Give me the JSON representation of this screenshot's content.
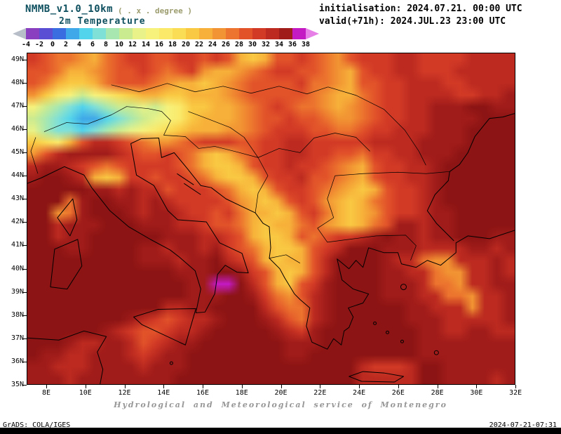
{
  "header": {
    "model": "NMMB_v1.0_10km",
    "units_note": "( . x . degree )",
    "variable": "2m Temperature",
    "initialisation": "initialisation: 2024.07.21. 00:00 UTC",
    "valid": "valid(+71h): 2024.JUL.23 23:00 UTC"
  },
  "colorbar": {
    "tick_labels": [
      "-4",
      "-2",
      "0",
      "2",
      "4",
      "6",
      "8",
      "10",
      "12",
      "14",
      "16",
      "18",
      "20",
      "22",
      "24",
      "26",
      "28",
      "30",
      "32",
      "34",
      "36",
      "38"
    ],
    "segment_colors": [
      "#8a3fc0",
      "#5a4fd4",
      "#3a6ee0",
      "#3fa8e8",
      "#52d4ec",
      "#7fe0d8",
      "#a8e8b0",
      "#cbeb90",
      "#e8f288",
      "#f6f27c",
      "#fbe96a",
      "#fbdc55",
      "#fac943",
      "#f7b13a",
      "#f29433",
      "#ec742e",
      "#e2532a",
      "#d23a26",
      "#bc2a20",
      "#a01c1a",
      "#c41ac4"
    ],
    "arrow_left_color": "#b8bec8",
    "arrow_right_color": "#e67fe6"
  },
  "map": {
    "lat_labels": [
      "49N",
      "48N",
      "47N",
      "46N",
      "45N",
      "44N",
      "43N",
      "42N",
      "41N",
      "40N",
      "39N",
      "38N",
      "37N",
      "36N",
      "35N"
    ],
    "lon_labels": [
      "8E",
      "10E",
      "12E",
      "14E",
      "16E",
      "18E",
      "20E",
      "22E",
      "24E",
      "26E",
      "28E",
      "30E",
      "32E"
    ],
    "grid": {
      "cols": 40,
      "rows": 28,
      "palette": {
        "d": "#3fa8e8",
        "e": "#52d4ec",
        "f": "#7fe0d8",
        "g": "#a8e8b0",
        "h": "#cbeb90",
        "i": "#e8f288",
        "j": "#f6f27c",
        "k": "#fbe96a",
        "l": "#fbdc55",
        "m": "#fac943",
        "n": "#f7b13a",
        "o": "#f29433",
        "p": "#ec742e",
        "q": "#e2532a",
        "r": "#d23a26",
        "s": "#bc2a20",
        "t": "#a01c1a",
        "u": "#8c1414",
        "v": "#c41ac4"
      },
      "rows_data": [
        "rqpponpqrrqqrrqrqnmnqqrqpoqrrrssrrrrssss",
        "qqpnnopqqrqpqronnopqrrqqponqrrssrrrsssss",
        "qpnmmnpqqqponnmnopqqqqrpponqqrrsssrrssss",
        "omkjhjklmnnmmnnnopqqqqqponnpqrrssssrrsst",
        "jhgfefghhihjkmmnnopqrqpponopqrrsstttuutt",
        "hgfeddefghijkmnnnopqqrqqpoopqrrssttttuuu",
        "igffefghijklmnnnoopqrrrqqppqrrssstttuuuu",
        "mlknqssrqpoopqrrrqqrrssrrrrrssssttttuuuu",
        "oqsttttsrqqrqpnmnpqrrssrrqqprrsstttuuuuu",
        "sttsrqpqrrrrqpnmmnqrrsrrqponqrrsstuuuuuu",
        "tuutsnmnrrqrrqpnmmnqrrsqqponqrrsstuuuuuu",
        "uuuuuttstssqrrrqpnmnqrrqponmnqrrstuuuuuu",
        "uuuptuuttstsrrrrqonmnqrqonmnpqrrstuuuuuu",
        "uuoptuuutsttsrrqrpnnmnqrpnmnoqrrsttuuuuu",
        "uustttuuutttssrqqpnmnnpqonmnpqttsttuuuuu",
        "uusttuuuuuutttssrqnmmnqpqrrstuttsttuuutt",
        "uuuttuuuuttsttstrqpnmmnqrsuuutttssssttst",
        "uuuuuuuuutttsttusrqnmnnqsuuuutsspoosssts",
        "uuuuuuuuuuuutttuutrqnmnqsuuuuttsspoossts",
        "uuuuuuuuuuuuuttvvusqnmqrtuuuutttspposstt",
        "uuuuuuuuuuuuutttuutrpoqstuuuutttsspposst",
        "uuuuuuuuuuussttuuuusqppstuuuuuuttsssosst",
        "uuuuuuuutsrqrsstuuutsqpstuuuuuutttssssst",
        "uuuuuutsrqqrsstuuuuutsrtuuuuuuuuttssttss",
        "uuutssttsqrsttuuuuuuutttuuuuuuuutttttttt",
        "uttsstttsrsttuuuuuuuuttuuuuuuuuutttttttt",
        "ttsssttttstttuuuuuuuuuuuuuusrrrsuutttttt",
        "tttsttttttttuuuuuuuuuuuuuuusssssuuttttst"
      ]
    }
  },
  "footer": {
    "credit": "Hydrological and Meteorological service of Montenegro",
    "grads": "GrADS: COLA/IGES",
    "timestamp": "2024-07-21-07:31"
  },
  "chart_data": {
    "type": "heatmap",
    "title": "2m Temperature",
    "model": "NMMB_v1.0_10km",
    "initialisation": "2024.07.21. 00:00 UTC",
    "valid": "2024.JUL.23 23:00 UTC",
    "units": "degree C",
    "colorbar_ticks": [
      -4,
      -2,
      0,
      2,
      4,
      6,
      8,
      10,
      12,
      14,
      16,
      18,
      20,
      22,
      24,
      26,
      28,
      30,
      32,
      34,
      36,
      38
    ],
    "lat_axis": [
      "35N",
      "49N"
    ],
    "lon_axis": [
      "8E",
      "32E"
    ],
    "legend_position": "top",
    "grid_ref": "map.grid"
  }
}
